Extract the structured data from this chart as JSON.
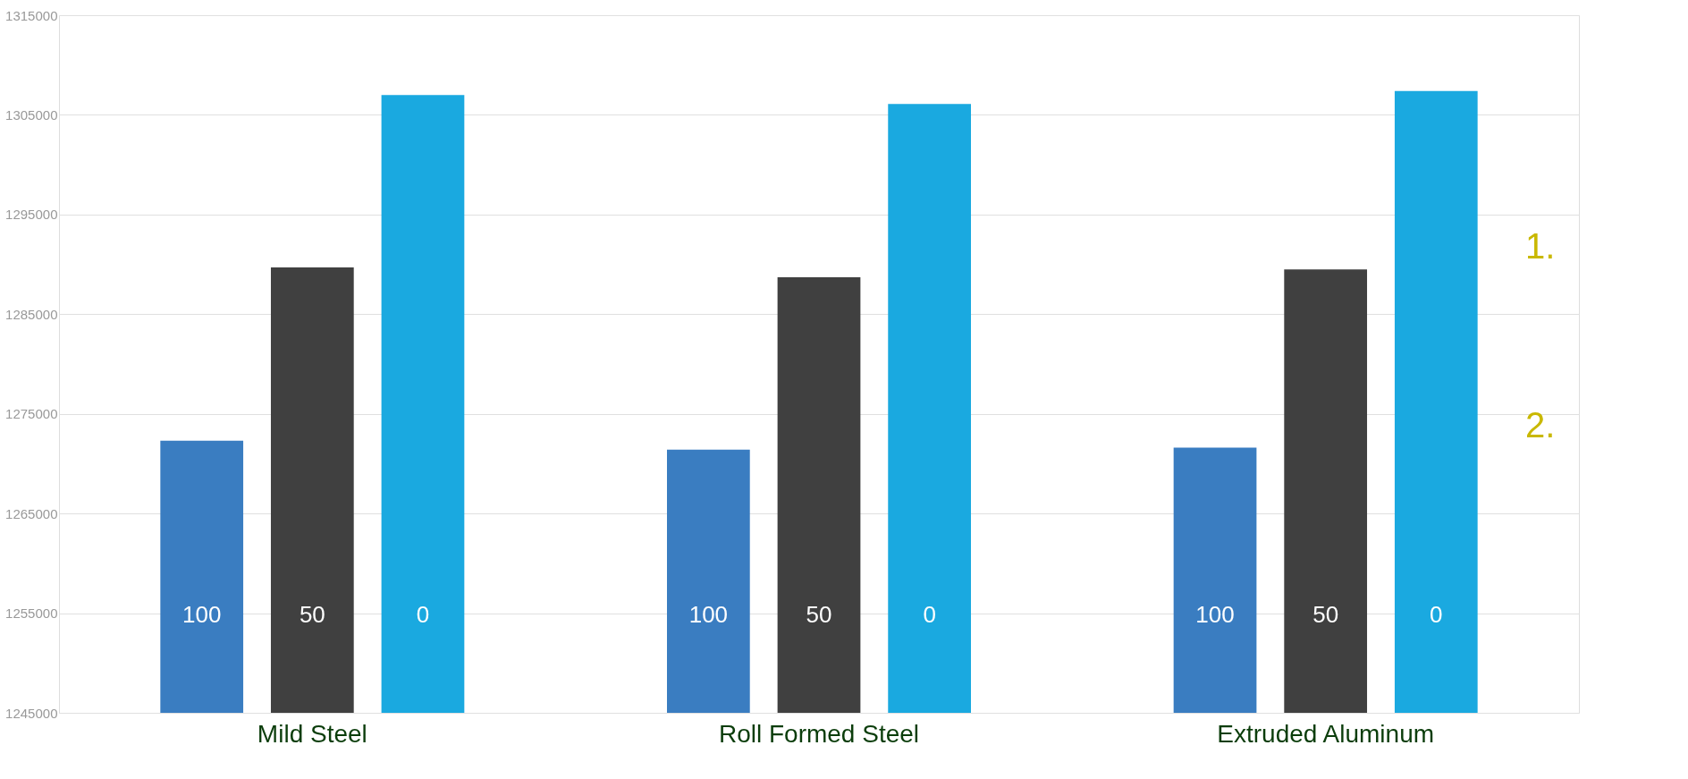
{
  "chart_data": {
    "type": "bar",
    "categories": [
      "Mild Steel",
      "Roll Formed Steel",
      "Extruded Aluminum"
    ],
    "series": [
      {
        "color": "#3a7dc1",
        "values": [
          1272300,
          1271400,
          1271600
        ]
      },
      {
        "color": "#404040",
        "values": [
          1289700,
          1288700,
          1289500
        ]
      },
      {
        "color": "#1aa9e0",
        "values": [
          1307000,
          1306100,
          1307400
        ]
      }
    ],
    "ylim": [
      1245000,
      1315000
    ],
    "yticks": [
      1245000,
      1255000,
      1265000,
      1275000,
      1285000,
      1295000,
      1305000,
      1315000
    ],
    "grid": "y",
    "annotations": [
      "100",
      "50",
      "0",
      "100",
      "50",
      "0",
      "100",
      "50",
      "0",
      "1.",
      "2."
    ]
  }
}
